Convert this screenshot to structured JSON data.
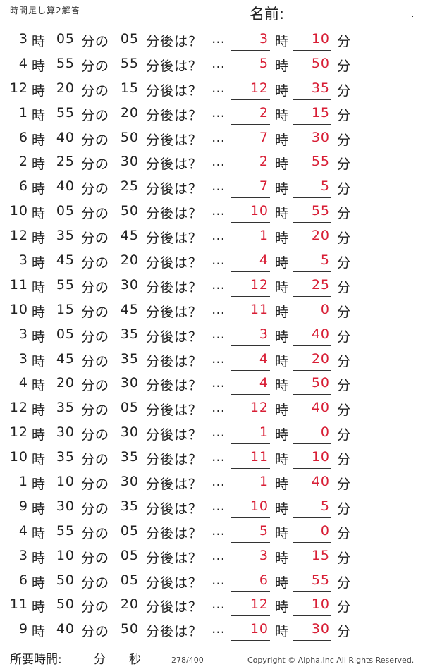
{
  "header": {
    "title": "時間足し算2解答",
    "name_label": "名前:",
    "name_end": "."
  },
  "labels": {
    "ji": "時",
    "fun_no": "分の",
    "fun_after": "分後は？",
    "dots": "…",
    "fun": "分"
  },
  "problems": [
    {
      "h": "3",
      "m": "05",
      "add": "05",
      "ans_h": "3",
      "ans_m": "10"
    },
    {
      "h": "4",
      "m": "55",
      "add": "55",
      "ans_h": "5",
      "ans_m": "50"
    },
    {
      "h": "12",
      "m": "20",
      "add": "15",
      "ans_h": "12",
      "ans_m": "35"
    },
    {
      "h": "1",
      "m": "55",
      "add": "20",
      "ans_h": "2",
      "ans_m": "15"
    },
    {
      "h": "6",
      "m": "40",
      "add": "50",
      "ans_h": "7",
      "ans_m": "30"
    },
    {
      "h": "2",
      "m": "25",
      "add": "30",
      "ans_h": "2",
      "ans_m": "55"
    },
    {
      "h": "6",
      "m": "40",
      "add": "25",
      "ans_h": "7",
      "ans_m": "5"
    },
    {
      "h": "10",
      "m": "05",
      "add": "50",
      "ans_h": "10",
      "ans_m": "55"
    },
    {
      "h": "12",
      "m": "35",
      "add": "45",
      "ans_h": "1",
      "ans_m": "20"
    },
    {
      "h": "3",
      "m": "45",
      "add": "20",
      "ans_h": "4",
      "ans_m": "5"
    },
    {
      "h": "11",
      "m": "55",
      "add": "30",
      "ans_h": "12",
      "ans_m": "25"
    },
    {
      "h": "10",
      "m": "15",
      "add": "45",
      "ans_h": "11",
      "ans_m": "0"
    },
    {
      "h": "3",
      "m": "05",
      "add": "35",
      "ans_h": "3",
      "ans_m": "40"
    },
    {
      "h": "3",
      "m": "45",
      "add": "35",
      "ans_h": "4",
      "ans_m": "20"
    },
    {
      "h": "4",
      "m": "20",
      "add": "30",
      "ans_h": "4",
      "ans_m": "50"
    },
    {
      "h": "12",
      "m": "35",
      "add": "05",
      "ans_h": "12",
      "ans_m": "40"
    },
    {
      "h": "12",
      "m": "30",
      "add": "30",
      "ans_h": "1",
      "ans_m": "0"
    },
    {
      "h": "10",
      "m": "35",
      "add": "35",
      "ans_h": "11",
      "ans_m": "10"
    },
    {
      "h": "1",
      "m": "10",
      "add": "30",
      "ans_h": "1",
      "ans_m": "40"
    },
    {
      "h": "9",
      "m": "30",
      "add": "35",
      "ans_h": "10",
      "ans_m": "5"
    },
    {
      "h": "4",
      "m": "55",
      "add": "05",
      "ans_h": "5",
      "ans_m": "0"
    },
    {
      "h": "3",
      "m": "10",
      "add": "05",
      "ans_h": "3",
      "ans_m": "15"
    },
    {
      "h": "6",
      "m": "50",
      "add": "05",
      "ans_h": "6",
      "ans_m": "55"
    },
    {
      "h": "11",
      "m": "50",
      "add": "20",
      "ans_h": "12",
      "ans_m": "10"
    },
    {
      "h": "9",
      "m": "40",
      "add": "50",
      "ans_h": "10",
      "ans_m": "30"
    }
  ],
  "footer": {
    "time_label": "所要時間:",
    "min_label": "分",
    "sec_label": "秒",
    "page": "278/400",
    "copyright": "Copyright ©  Alpha.Inc All Rights Reserved."
  },
  "colors": {
    "answer": "#d81e35"
  }
}
